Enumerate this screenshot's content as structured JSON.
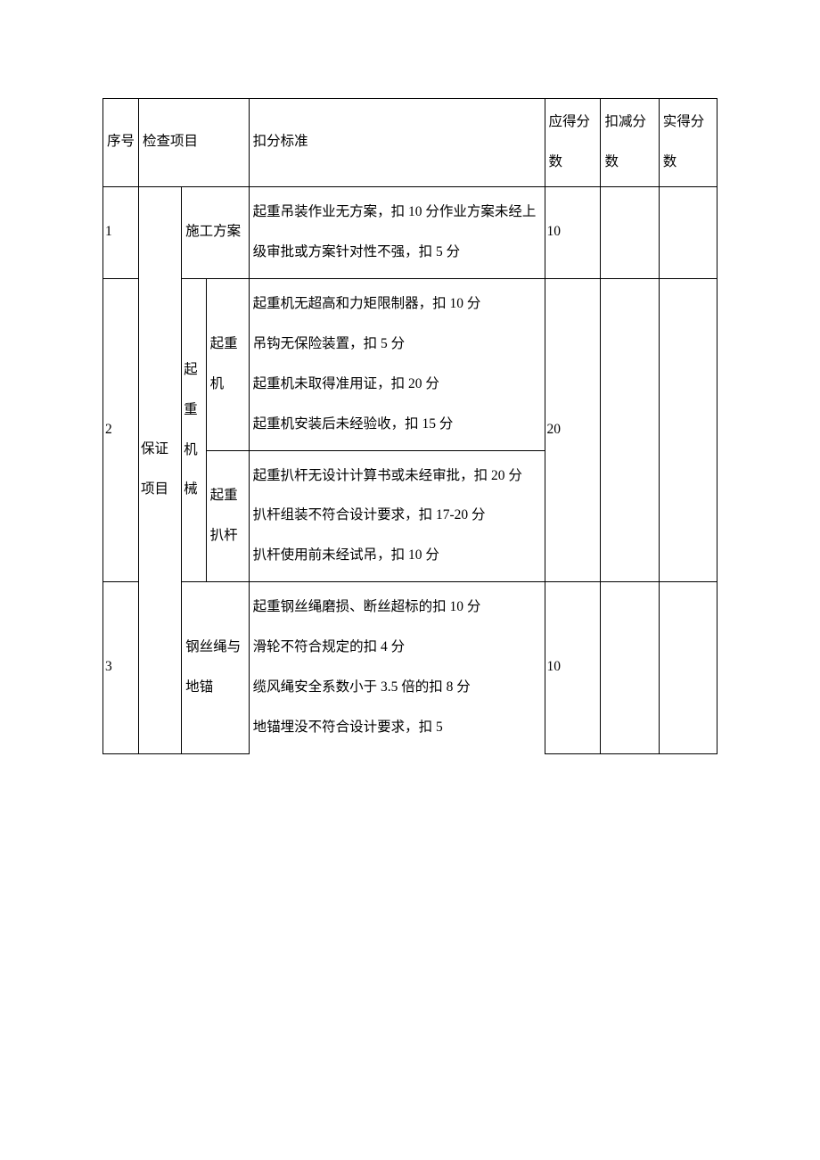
{
  "header": {
    "seq": "序号",
    "item": "检查项目",
    "criteria": "扣分标准",
    "should": "应得分数",
    "deduct": "扣减分数",
    "actual": "实得分数"
  },
  "category": "保证项目",
  "rows": [
    {
      "seq": "1",
      "sub": "施工方案",
      "criteria": "起重吊装作业无方案，扣 10 分作业方案未经上级审批或方案针对性不强，扣 5 分",
      "should": "10"
    },
    {
      "seq": "2",
      "group": "起重机械",
      "sub_a": "起重机",
      "criteria_a": "起重机无超高和力矩限制器，扣 10 分\n吊钩无保险装置，扣 5 分\n起重机未取得准用证，扣 20 分\n起重机安装后未经验收，扣 15 分",
      "sub_b": "起重扒杆",
      "criteria_b": "起重扒杆无设计计算书或未经审批，扣 20 分\n扒杆组装不符合设计要求，扣 17-20 分\n扒杆使用前未经试吊，扣 10 分",
      "should": "20"
    },
    {
      "seq": "3",
      "sub": "钢丝绳与地锚",
      "criteria": "起重钢丝绳磨损、断丝超标的扣 10 分\n滑轮不符合规定的扣 4 分\n缆风绳安全系数小于 3.5 倍的扣 8 分\n地锚埋没不符合设计要求，扣 5",
      "should": "10"
    }
  ]
}
